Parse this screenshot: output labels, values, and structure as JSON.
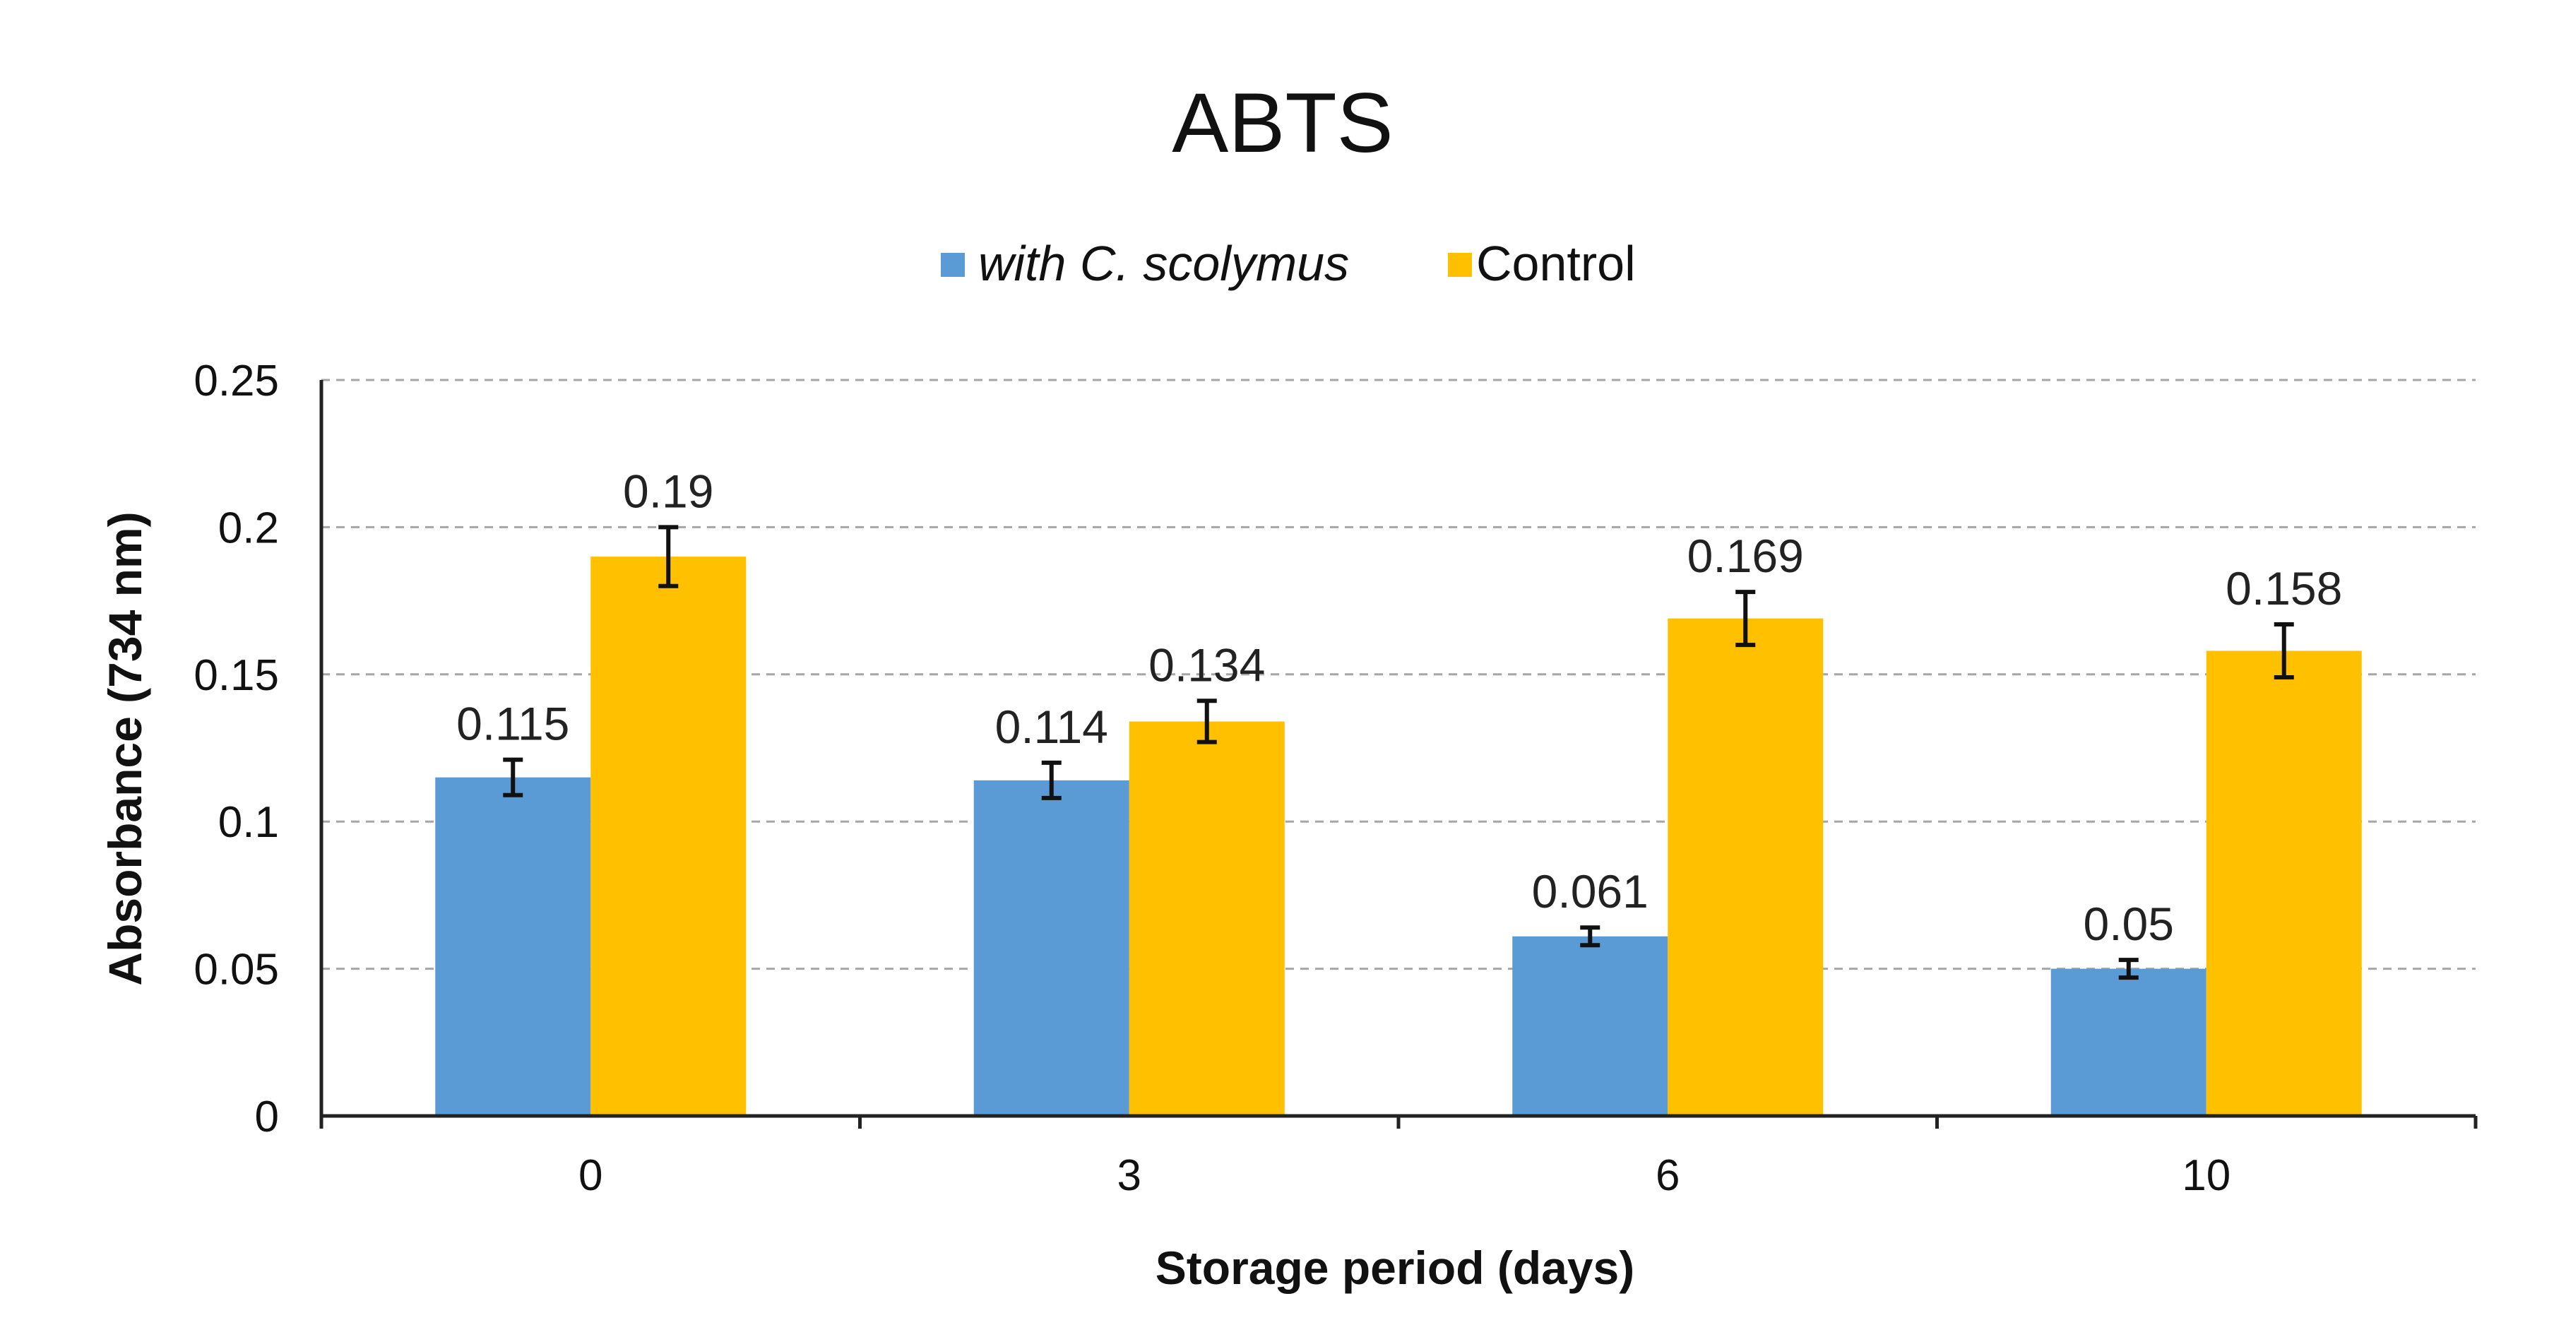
{
  "chart_data": {
    "type": "bar",
    "title": "ABTS",
    "xlabel": "Storage period (days)",
    "ylabel": "Absorbance (734 nm)",
    "categories": [
      "0",
      "3",
      "6",
      "10"
    ],
    "ylim": [
      0,
      0.25
    ],
    "yticks": [
      "0",
      "0.05",
      "0.1",
      "0.15",
      "0.2",
      "0.25"
    ],
    "grid": true,
    "legend_position": "top-center",
    "series": [
      {
        "name": "with C. scolymus",
        "color": "#5B9BD5",
        "values": [
          0.115,
          0.114,
          0.061,
          0.05
        ],
        "labels": [
          "0.115",
          "0.114",
          "0.061",
          "0.05"
        ],
        "errors": [
          0.006,
          0.006,
          0.003,
          0.003
        ]
      },
      {
        "name": "Control",
        "color": "#FFC000",
        "values": [
          0.19,
          0.134,
          0.169,
          0.158
        ],
        "labels": [
          "0.19",
          "0.134",
          "0.169",
          "0.158"
        ],
        "errors": [
          0.01,
          0.007,
          0.009,
          0.009
        ]
      }
    ]
  }
}
